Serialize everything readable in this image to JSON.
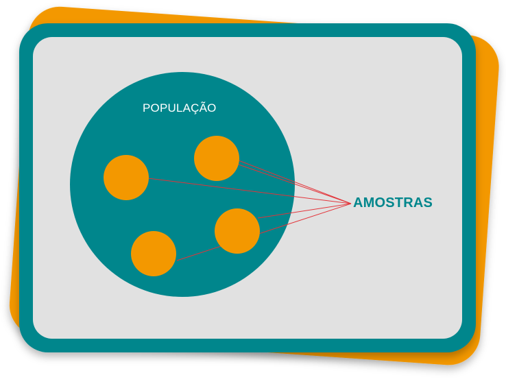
{
  "diagram": {
    "population_label": "POPULAÇÃO",
    "samples_label": "AMOSTRAS"
  },
  "colors": {
    "back_card": "#f39800",
    "frame": "#00868c",
    "panel": "#e1e1e1",
    "population": "#00868c",
    "sample": "#f39800",
    "connector": "#e2343a",
    "samples_text": "#00868c"
  }
}
